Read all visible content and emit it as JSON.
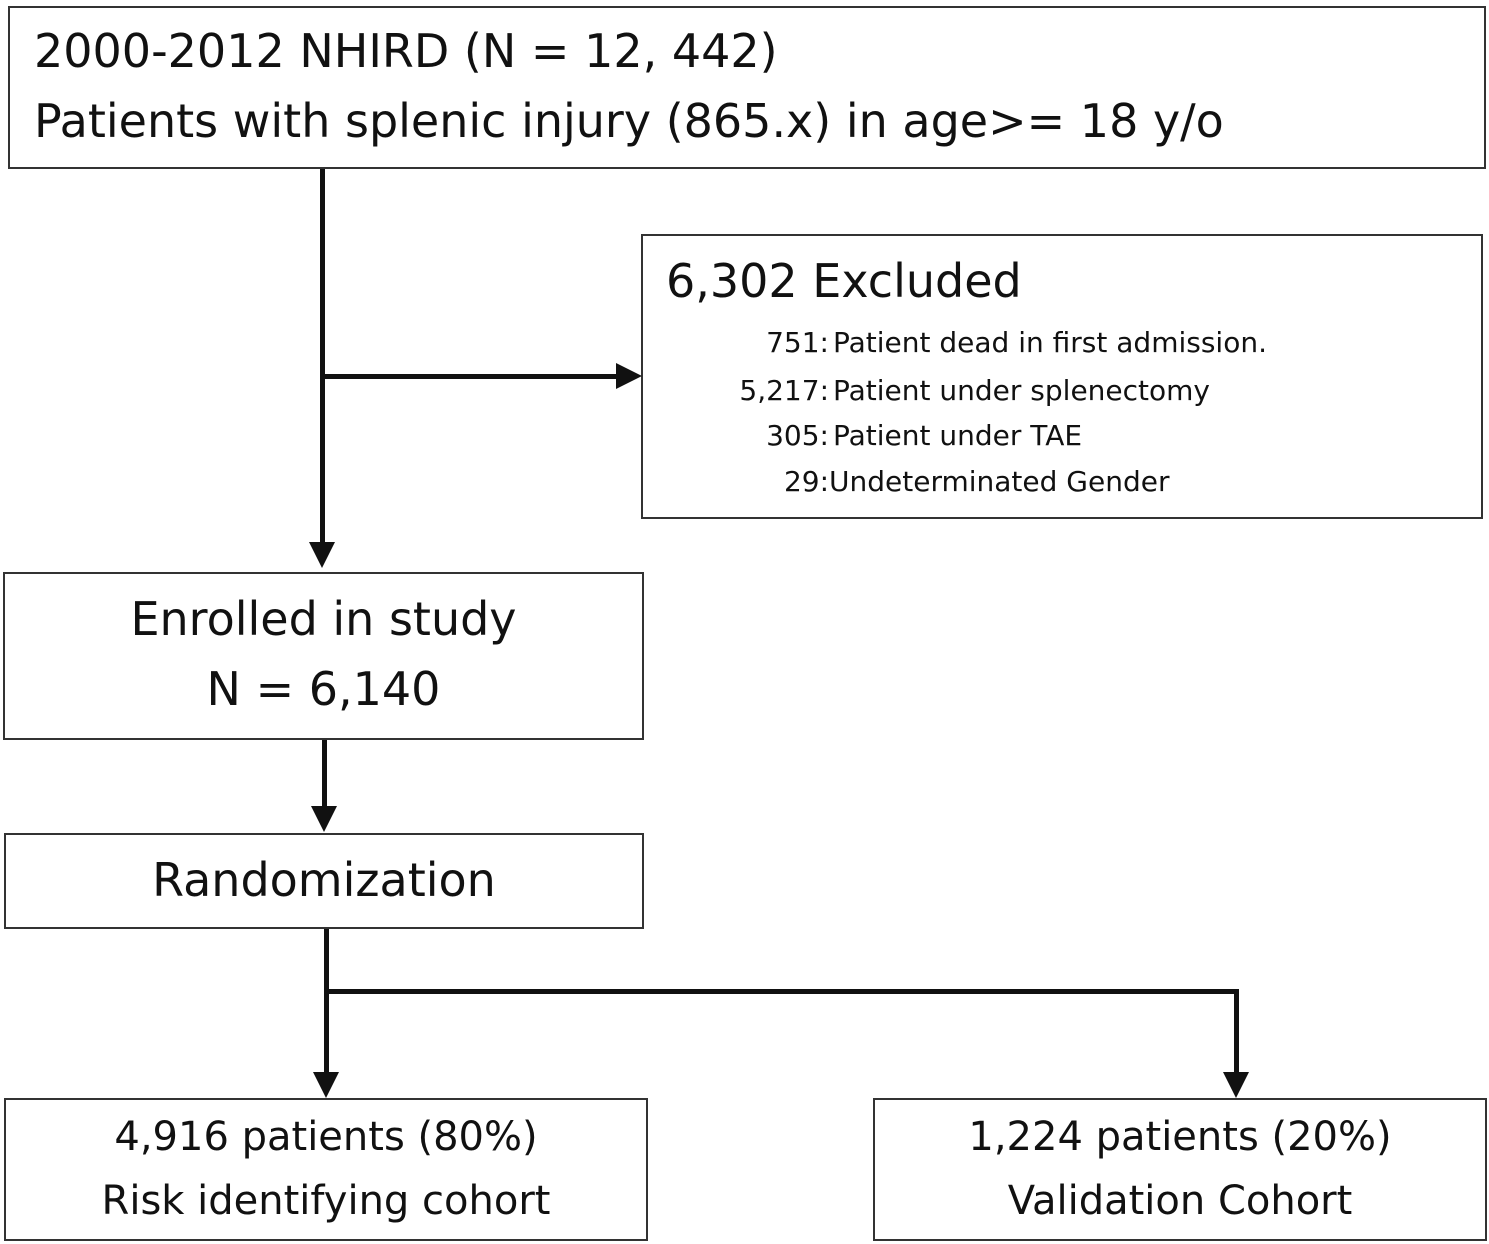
{
  "source": {
    "line1": "2000-2012 NHIRD  (N = 12, 442)",
    "line2": "Patients with splenic injury (865.x)  in age>= 18 y/o"
  },
  "excluded": {
    "title": "6,302 Excluded",
    "items": [
      {
        "count": "751:",
        "reason": "Patient dead in first admission."
      },
      {
        "count": "5,217:",
        "reason": "Patient under splenectomy"
      },
      {
        "count": "305:",
        "reason": "Patient under TAE"
      },
      {
        "count": "29:",
        "reason": "Undeterminated Gender"
      }
    ]
  },
  "enrolled": {
    "line1": "Enrolled in study",
    "line2": "N = 6,140"
  },
  "randomization": {
    "label": "Randomization"
  },
  "cohort_left": {
    "line1": "4,916  patients (80%)",
    "line2": "Risk identifying cohort"
  },
  "cohort_right": {
    "line1": "1,224  patients (20%)",
    "line2": "Validation Cohort"
  }
}
